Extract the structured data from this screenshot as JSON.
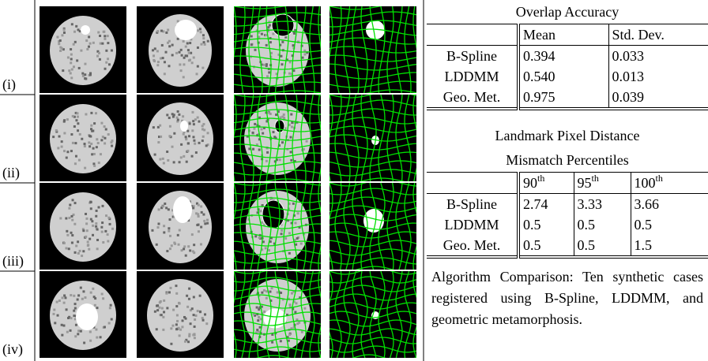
{
  "figure": {
    "row_labels": [
      "(i)",
      "(ii)",
      "(iii)",
      "(iv)"
    ]
  },
  "overlap_table": {
    "title": "Overlap Accuracy",
    "headers": [
      "Mean",
      "Std. Dev."
    ],
    "rows": [
      {
        "label": "B-Spline",
        "values": [
          "0.394",
          "0.033"
        ]
      },
      {
        "label": "LDDMM",
        "values": [
          "0.540",
          "0.013"
        ]
      },
      {
        "label": "Geo. Met.",
        "values": [
          "0.975",
          "0.039"
        ]
      }
    ]
  },
  "landmark_table": {
    "title": [
      "Landmark Pixel Distance",
      "Mismatch Percentiles"
    ],
    "headers": [
      {
        "base": "90",
        "sup": "th"
      },
      {
        "base": "95",
        "sup": "th"
      },
      {
        "base": "100",
        "sup": "th"
      }
    ],
    "rows": [
      {
        "label": "B-Spline",
        "values": [
          "2.74",
          "3.33",
          "3.66"
        ]
      },
      {
        "label": "LDDMM",
        "values": [
          "0.5",
          "0.5",
          "0.5"
        ]
      },
      {
        "label": "Geo. Met.",
        "values": [
          "0.5",
          "0.5",
          "1.5"
        ]
      }
    ]
  },
  "caption": "Algorithm Comparison: Ten synthetic cases registered using B-Spline, LDDMM, and geometric metamorphosis."
}
